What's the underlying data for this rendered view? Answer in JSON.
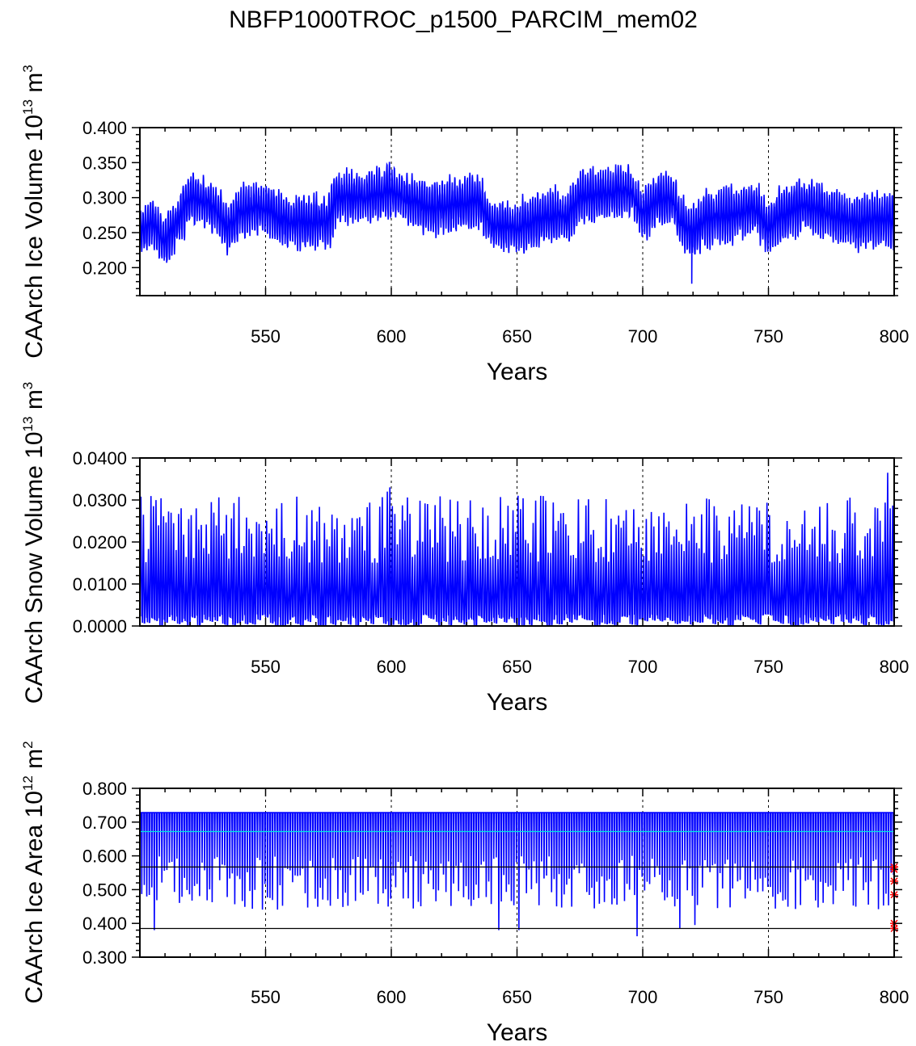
{
  "title": "NBFP1000TROC_p1500_PARCIM_mem02",
  "colors": {
    "series": "#0000ff",
    "mean_line": "#00e5e5",
    "ref_line": "#000000",
    "marker": "#ff0000"
  },
  "chart_data": [
    {
      "type": "line",
      "name": "ice-volume",
      "ylabel_prefix": "CAArch Ice Volume 10",
      "ylabel_exp": "13",
      "ylabel_unit": " m",
      "ylabel_unit_exp": "3",
      "xlabel": "Years",
      "xlim": [
        500,
        800
      ],
      "ylim": [
        0.16,
        0.4
      ],
      "xticks": [
        550,
        600,
        650,
        700,
        750,
        800
      ],
      "xtick_labels": [
        "550",
        "600",
        "650",
        "700",
        "750",
        "800"
      ],
      "yticks": [
        0.2,
        0.25,
        0.3,
        0.35,
        0.4
      ],
      "ytick_labels": [
        "0.200",
        "0.250",
        "0.300",
        "0.350",
        "0.400"
      ],
      "grid_x": [
        550,
        600,
        650,
        700,
        750
      ],
      "series": [
        {
          "name": "monthly",
          "base_knots": [
            [
              500,
              0.25
            ],
            [
              505,
              0.265
            ],
            [
              510,
              0.235
            ],
            [
              515,
              0.265
            ],
            [
              520,
              0.3
            ],
            [
              525,
              0.295
            ],
            [
              530,
              0.285
            ],
            [
              535,
              0.255
            ],
            [
              540,
              0.28
            ],
            [
              545,
              0.285
            ],
            [
              550,
              0.285
            ],
            [
              555,
              0.27
            ],
            [
              560,
              0.265
            ],
            [
              565,
              0.265
            ],
            [
              570,
              0.265
            ],
            [
              575,
              0.265
            ],
            [
              578,
              0.3
            ],
            [
              585,
              0.3
            ],
            [
              590,
              0.3
            ],
            [
              600,
              0.31
            ],
            [
              605,
              0.3
            ],
            [
              615,
              0.285
            ],
            [
              625,
              0.29
            ],
            [
              635,
              0.295
            ],
            [
              640,
              0.26
            ],
            [
              645,
              0.26
            ],
            [
              650,
              0.255
            ],
            [
              655,
              0.265
            ],
            [
              665,
              0.275
            ],
            [
              670,
              0.27
            ],
            [
              675,
              0.3
            ],
            [
              685,
              0.305
            ],
            [
              695,
              0.31
            ],
            [
              700,
              0.275
            ],
            [
              705,
              0.295
            ],
            [
              712,
              0.3
            ],
            [
              715,
              0.265
            ],
            [
              720,
              0.25
            ],
            [
              725,
              0.27
            ],
            [
              735,
              0.275
            ],
            [
              745,
              0.285
            ],
            [
              750,
              0.255
            ],
            [
              755,
              0.275
            ],
            [
              765,
              0.29
            ],
            [
              775,
              0.275
            ],
            [
              785,
              0.265
            ],
            [
              795,
              0.27
            ],
            [
              800,
              0.265
            ]
          ],
          "amp_mean": 0.065,
          "amp_var": 0.03,
          "clip": [
            0.175,
            0.36
          ]
        }
      ]
    },
    {
      "type": "line",
      "name": "snow-volume",
      "ylabel_prefix": "CAArch Snow Volume 10",
      "ylabel_exp": "13",
      "ylabel_unit": " m",
      "ylabel_unit_exp": "3",
      "xlabel": "Years",
      "xlim": [
        500,
        800
      ],
      "ylim": [
        0.0,
        0.04
      ],
      "xticks": [
        550,
        600,
        650,
        700,
        750,
        800
      ],
      "xtick_labels": [
        "550",
        "600",
        "650",
        "700",
        "750",
        "800"
      ],
      "yticks": [
        0.0,
        0.01,
        0.02,
        0.03,
        0.04
      ],
      "ytick_labels": [
        "0.0000",
        "0.0100",
        "0.0200",
        "0.0300",
        "0.0400"
      ],
      "grid_x": [
        550,
        600,
        650,
        700,
        750
      ],
      "series": [
        {
          "name": "monthly",
          "min_range": [
            0.0,
            0.003
          ],
          "peak_range": [
            0.015,
            0.031
          ],
          "spikes": [
            [
              598,
              0.032
            ],
            [
              599,
              0.033
            ],
            [
              650,
              0.031
            ],
            [
              797,
              0.0365
            ],
            [
              798,
              0.028
            ]
          ]
        }
      ]
    },
    {
      "type": "line",
      "name": "ice-area",
      "ylabel_prefix": "CAArch Ice Area 10",
      "ylabel_exp": "12",
      "ylabel_unit": " m",
      "ylabel_unit_exp": "2",
      "xlabel": "Years",
      "xlim": [
        500,
        800
      ],
      "ylim": [
        0.3,
        0.8
      ],
      "xticks": [
        550,
        600,
        650,
        700,
        750,
        800
      ],
      "xtick_labels": [
        "550",
        "600",
        "650",
        "700",
        "750",
        "800"
      ],
      "yticks": [
        0.3,
        0.4,
        0.5,
        0.6,
        0.7,
        0.8
      ],
      "ytick_labels": [
        "0.300",
        "0.400",
        "0.500",
        "0.600",
        "0.700",
        "0.800"
      ],
      "grid_x": [
        550,
        600,
        650,
        700,
        750
      ],
      "hlines": [
        {
          "y": 0.672,
          "role": "mean_line"
        },
        {
          "y": 0.567,
          "role": "ref_line"
        },
        {
          "y": 0.385,
          "role": "ref_line"
        }
      ],
      "markers": [
        {
          "x": 800,
          "y": 0.567
        },
        {
          "x": 800,
          "y": 0.56
        },
        {
          "x": 800,
          "y": 0.525
        },
        {
          "x": 800,
          "y": 0.485
        },
        {
          "x": 800,
          "y": 0.4
        },
        {
          "x": 800,
          "y": 0.385
        }
      ],
      "series": [
        {
          "name": "monthly",
          "max_value": 0.728,
          "min_range": [
            0.44,
            0.6
          ],
          "dips": [
            [
              505,
              0.38
            ],
            [
              642,
              0.38
            ],
            [
              650,
              0.38
            ],
            [
              697,
              0.362
            ],
            [
              714,
              0.385
            ],
            [
              720,
              0.395
            ]
          ]
        }
      ]
    }
  ]
}
